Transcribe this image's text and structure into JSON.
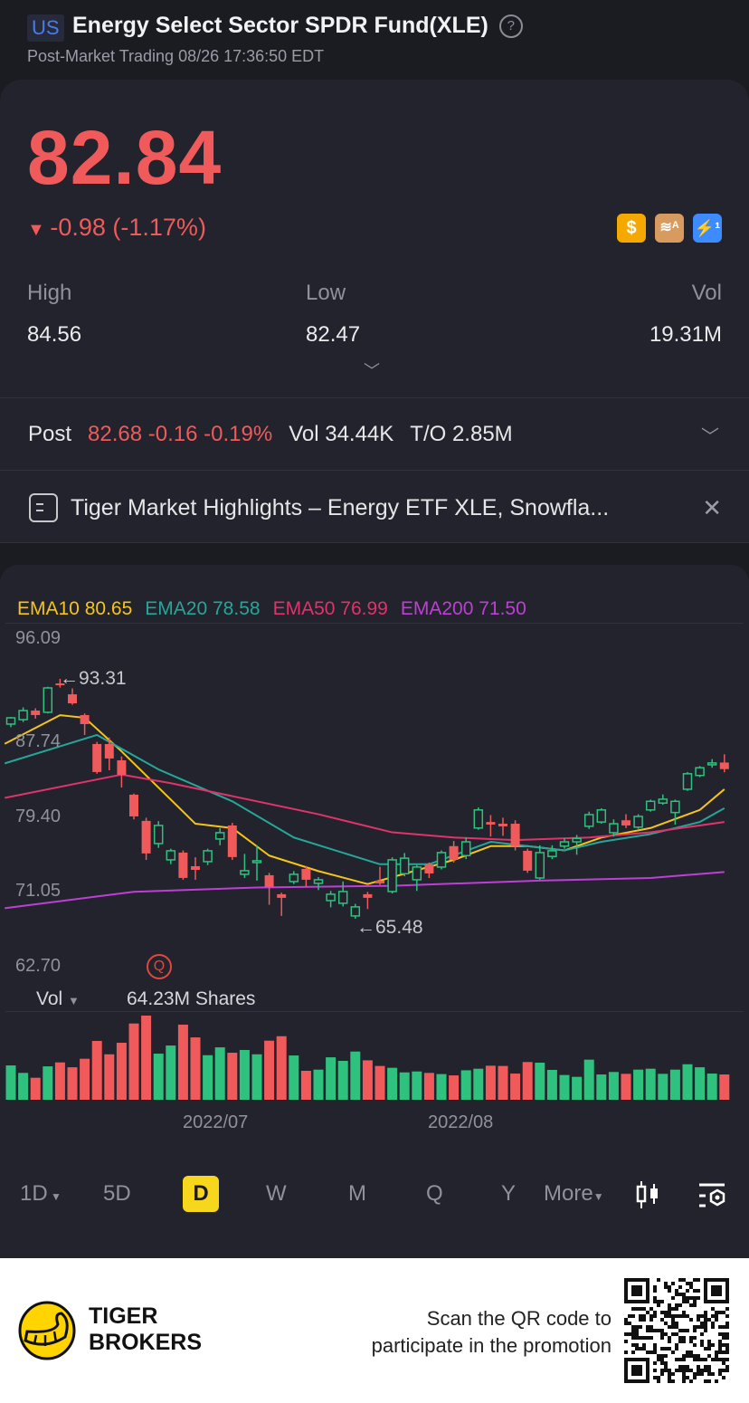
{
  "header": {
    "market": "US",
    "title": "Energy Select Sector SPDR Fund(XLE)",
    "subtitle": "Post-Market Trading 08/26 17:36:50 EDT",
    "help_icon": "question-circle-icon"
  },
  "quote": {
    "price": "82.84",
    "change": "-0.98 (-1.17%)",
    "direction_icon": "down-triangle-icon",
    "badges": [
      {
        "icon": "dollar-icon",
        "color": "#f5a800"
      },
      {
        "icon": "layers-a-icon",
        "color": "#d79a5f"
      },
      {
        "icon": "lightning-1-icon",
        "color": "#3c8cff"
      }
    ],
    "stats": [
      {
        "label": "High",
        "value": "84.56"
      },
      {
        "label": "Low",
        "value": "82.47"
      },
      {
        "label": "Vol",
        "value": "19.31M"
      }
    ]
  },
  "post": {
    "label": "Post",
    "price": "82.68",
    "change": "-0.16",
    "pct": "-0.19%",
    "vol": "Vol 34.44K",
    "to": "T/O 2.85M"
  },
  "news": {
    "text": "Tiger Market Highlights – Energy ETF XLE, Snowfla...",
    "icon": "news-icon",
    "close_icon": "close-icon"
  },
  "colors": {
    "up": "#2ec27e",
    "down": "#f05a5a",
    "accent": "#f7d71b",
    "background": "#1b1c22",
    "card": "#22232c"
  },
  "chart_data": {
    "type": "candlestick",
    "indicators": [
      {
        "name": "EMA10",
        "value": "80.65",
        "color": "#f5c518",
        "points": [
          [
            0.5,
            85.77
          ],
          [
            5,
            89.1
          ],
          [
            7,
            88.8
          ],
          [
            10,
            84.9
          ],
          [
            13,
            80.7
          ],
          [
            16,
            76.5
          ],
          [
            19,
            76.0
          ],
          [
            22,
            72.8
          ],
          [
            26,
            71.0
          ],
          [
            30,
            69.5
          ],
          [
            33,
            70.7
          ],
          [
            37,
            72.3
          ],
          [
            40,
            73.9
          ],
          [
            43,
            73.9
          ],
          [
            46,
            73.4
          ],
          [
            49,
            74.9
          ],
          [
            53,
            76.0
          ],
          [
            57,
            78.1
          ],
          [
            59,
            80.5
          ]
        ]
      },
      {
        "name": "EMA20",
        "value": "78.58",
        "color": "#26a69a",
        "points": [
          [
            0.5,
            83.5
          ],
          [
            8,
            86.8
          ],
          [
            13,
            82.8
          ],
          [
            19,
            79.1
          ],
          [
            24,
            74.9
          ],
          [
            31,
            71.8
          ],
          [
            35,
            71.8
          ],
          [
            40,
            74.4
          ],
          [
            43,
            73.9
          ],
          [
            46,
            73.4
          ],
          [
            49,
            74.4
          ],
          [
            53,
            75.3
          ],
          [
            57,
            76.7
          ],
          [
            59,
            78.3
          ]
        ]
      },
      {
        "name": "EMA50",
        "value": "76.99",
        "color": "#e0336b",
        "points": [
          [
            0.5,
            79.5
          ],
          [
            10,
            82.2
          ],
          [
            14,
            81.2
          ],
          [
            19,
            79.7
          ],
          [
            26,
            77.6
          ],
          [
            32,
            75.5
          ],
          [
            37,
            74.9
          ],
          [
            42,
            74.6
          ],
          [
            48,
            74.9
          ],
          [
            53,
            75.5
          ],
          [
            59,
            76.7
          ]
        ]
      },
      {
        "name": "EMA200",
        "value": "71.50",
        "color": "#c03ed8",
        "points": [
          [
            0.5,
            66.7
          ],
          [
            11,
            68.6
          ],
          [
            21,
            69.1
          ],
          [
            32,
            69.3
          ],
          [
            44,
            69.9
          ],
          [
            53,
            70.2
          ],
          [
            59,
            70.9
          ]
        ]
      }
    ],
    "y_ticks": [
      "96.09",
      "87.74",
      "79.40",
      "71.05",
      "62.70"
    ],
    "x_ticks": [
      "2022/07",
      "2022/08"
    ],
    "high_marker": "93.31",
    "low_marker": "65.48",
    "ohlc": [
      [
        88.06,
        88.9,
        87.7,
        88.79
      ],
      [
        88.58,
        90.0,
        88.3,
        89.63
      ],
      [
        89.63,
        89.9,
        88.7,
        89.11
      ],
      [
        89.43,
        92.4,
        89.3,
        92.26
      ],
      [
        92.78,
        93.31,
        92.3,
        92.57
      ],
      [
        91.52,
        92.2,
        90.3,
        90.47
      ],
      [
        89.11,
        89.3,
        86.8,
        88.06
      ],
      [
        85.75,
        86.0,
        82.3,
        82.5
      ],
      [
        85.75,
        86.5,
        82.7,
        84.07
      ],
      [
        83.86,
        84.3,
        80.7,
        82.18
      ],
      [
        79.87,
        80.0,
        77.0,
        77.35
      ],
      [
        76.83,
        77.2,
        72.3,
        73.05
      ],
      [
        74.2,
        76.8,
        73.7,
        76.3
      ],
      [
        72.31,
        73.6,
        71.8,
        73.36
      ],
      [
        73.15,
        73.4,
        70.0,
        70.21
      ],
      [
        71.57,
        72.6,
        70.0,
        71.15
      ],
      [
        72.1,
        73.6,
        71.7,
        73.36
      ],
      [
        74.73,
        76.0,
        74.0,
        75.46
      ],
      [
        76.3,
        76.6,
        72.3,
        72.63
      ],
      [
        70.63,
        73.0,
        70.2,
        71.05
      ],
      [
        72.0,
        74.0,
        69.9,
        72.2
      ],
      [
        70.52,
        70.8,
        67.1,
        69.16
      ],
      [
        68.32,
        68.5,
        65.8,
        67.9
      ],
      [
        69.79,
        71.0,
        69.5,
        70.63
      ],
      [
        71.26,
        71.6,
        69.2,
        70.0
      ],
      [
        69.58,
        70.3,
        68.8,
        70.0
      ],
      [
        67.58,
        68.7,
        66.8,
        68.32
      ],
      [
        67.27,
        69.8,
        66.9,
        68.63
      ],
      [
        65.8,
        67.2,
        65.48,
        66.85
      ],
      [
        68.32,
        68.6,
        66.6,
        67.9
      ],
      [
        69.9,
        71.5,
        69.4,
        69.58
      ],
      [
        68.63,
        72.6,
        68.4,
        72.31
      ],
      [
        70.7,
        73.1,
        70.4,
        72.5
      ],
      [
        70.0,
        71.7,
        68.7,
        71.47
      ],
      [
        71.8,
        72.0,
        70.2,
        70.73
      ],
      [
        71.47,
        73.4,
        71.2,
        73.15
      ],
      [
        73.9,
        74.5,
        72.0,
        72.3
      ],
      [
        72.8,
        74.9,
        72.4,
        74.4
      ],
      [
        76.0,
        78.4,
        75.8,
        78.1
      ],
      [
        76.7,
        77.5,
        75.0,
        76.4
      ],
      [
        76.5,
        77.2,
        75.1,
        76.2
      ],
      [
        76.5,
        76.9,
        73.4,
        73.9
      ],
      [
        73.36,
        73.6,
        70.8,
        71.05
      ],
      [
        70.2,
        74.0,
        70.0,
        73.15
      ],
      [
        72.7,
        74.0,
        72.4,
        73.36
      ],
      [
        73.9,
        74.8,
        73.6,
        74.4
      ],
      [
        74.4,
        75.2,
        72.9,
        74.8
      ],
      [
        76.2,
        77.9,
        75.9,
        77.56
      ],
      [
        76.7,
        78.3,
        76.5,
        78.1
      ],
      [
        75.46,
        77.0,
        75.0,
        76.5
      ],
      [
        76.9,
        77.6,
        76.0,
        76.3
      ],
      [
        76.1,
        77.6,
        75.9,
        77.35
      ],
      [
        78.1,
        79.3,
        77.9,
        79.1
      ],
      [
        78.9,
        79.9,
        78.7,
        79.35
      ],
      [
        77.8,
        79.3,
        76.4,
        79.1
      ],
      [
        80.5,
        82.5,
        80.3,
        82.3
      ],
      [
        82.1,
        83.2,
        81.9,
        83.0
      ],
      [
        83.35,
        84.0,
        83.0,
        83.55
      ],
      [
        83.6,
        84.56,
        82.47,
        82.84
      ]
    ],
    "volume_label": "Vol",
    "volume_readout": "64.23M Shares",
    "volume_unit": "M",
    "volume": [
      26.2,
      20.5,
      16.8,
      25.5,
      28.5,
      24.8,
      31.3,
      44.9,
      34.7,
      43.5,
      58.2,
      64.23,
      35.2,
      41.4,
      57.3,
      47.6,
      34.0,
      40.0,
      35.9,
      38.0,
      34.7,
      45.1,
      48.5,
      33.8,
      22.1,
      23.0,
      32.4,
      29.7,
      36.8,
      30.1,
      25.8,
      24.4,
      20.9,
      21.6,
      20.5,
      19.6,
      18.6,
      22.5,
      23.7,
      26.0,
      25.8,
      20.0,
      28.8,
      28.3,
      22.8,
      18.9,
      17.5,
      30.6,
      19.3,
      21.2,
      19.8,
      23.0,
      23.7,
      19.8,
      23.0,
      27.1,
      24.8,
      20.0,
      19.31
    ],
    "ylim": [
      62.7,
      96.09
    ]
  },
  "timeframes": [
    "1D",
    "5D",
    "D",
    "W",
    "M",
    "Q",
    "Y",
    "More"
  ],
  "selected_timeframe": "D",
  "toolbar_icons": [
    "candlestick-icon",
    "indicator-settings-icon"
  ],
  "footer": {
    "brand_line1": "TIGER",
    "brand_line2": "BROKERS",
    "scan_line1": "Scan the QR code to",
    "scan_line2": "participate in the promotion"
  }
}
